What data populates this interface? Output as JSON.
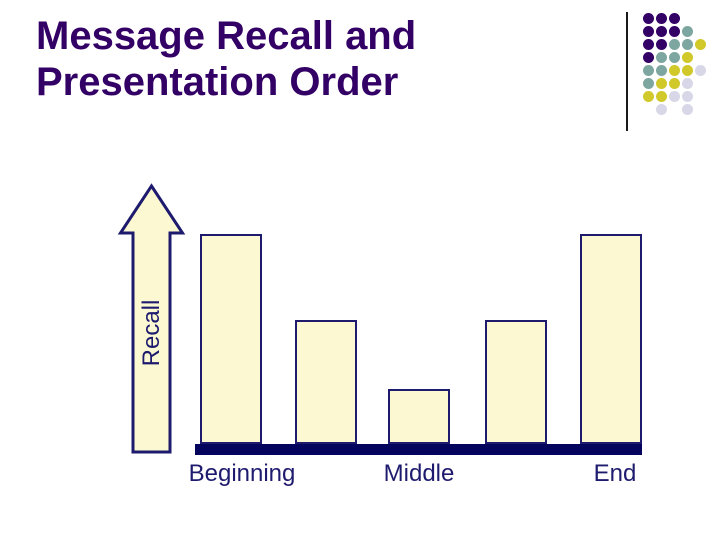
{
  "slide": {
    "title_line1": "Message Recall and",
    "title_line2": "Presentation Order"
  },
  "y_axis": {
    "label": "Recall"
  },
  "x_axis": {
    "labels": [
      "Beginning",
      "Middle",
      "End"
    ]
  },
  "chart_data": {
    "type": "bar",
    "title": "Message Recall and Presentation Order",
    "categories": [
      "Beginning",
      "",
      "Middle",
      "",
      "End"
    ],
    "values": [
      100,
      59,
      26,
      59,
      100
    ],
    "note": "relative recall levels; no numeric axis shown (U-shaped serial-position curve)",
    "xlabel": "",
    "ylabel": "Recall",
    "x_tick_labels": [
      "Beginning",
      "Middle",
      "End"
    ],
    "legend": false,
    "grid": false,
    "ylim": [
      0,
      100
    ]
  },
  "colors": {
    "title": "#330066",
    "navy": "#1e1b6e",
    "baseline": "#04045f",
    "bar_fill": "#fcf8d2",
    "line": "#1a1a1a"
  },
  "decoration": {
    "dot_matrix": [
      "PPP..",
      "PPPT.",
      "PPTTY",
      "PTTY.",
      "TTYYL",
      "TYYL.",
      "YYLL.",
      ".L.L."
    ],
    "dot_colors": {
      "P": "#330066",
      "T": "#7ea6a0",
      "Y": "#d0c929",
      "L": "#d7d7e7"
    }
  }
}
